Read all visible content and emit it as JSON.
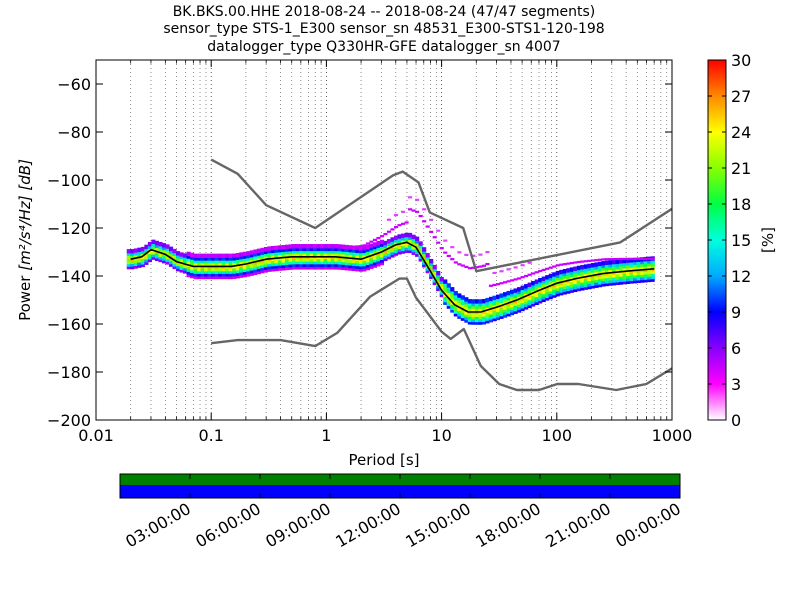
{
  "chart_data": {
    "type": "heatmap",
    "title_lines": [
      "BK.BKS.00.HHE   2018-08-24 -- 2018-08-24  (47/47 segments)",
      "sensor_type STS-1_E300 sensor_sn 48531_E300-STS1-120-198",
      "datalogger_type Q330HR-GFE datalogger_sn 4007"
    ],
    "xlabel": "Period [s]",
    "ylabel_prefix": "Power ",
    "ylabel_units": "[m²/s⁴/Hz] [dB]",
    "xscale": "log",
    "xlim": [
      0.01,
      1000
    ],
    "ylim": [
      -200,
      -50
    ],
    "x_ticks": [
      0.01,
      0.1,
      1,
      10,
      100,
      1000
    ],
    "x_tick_labels": [
      "0.01",
      "0.1",
      "1",
      "10",
      "100",
      "1000"
    ],
    "y_ticks": [
      -60,
      -80,
      -100,
      -120,
      -140,
      -160,
      -180,
      -200
    ],
    "y_tick_labels": [
      "−60",
      "−80",
      "−100",
      "−120",
      "−140",
      "−160",
      "−180",
      "−200"
    ],
    "grid": "vertical dotted",
    "colorbar": {
      "label": "[%]",
      "range": [
        0,
        30
      ],
      "ticks": [
        0,
        3,
        6,
        9,
        12,
        15,
        18,
        21,
        24,
        27,
        30
      ],
      "tick_labels": [
        "0",
        "3",
        "6",
        "9",
        "12",
        "15",
        "18",
        "21",
        "24",
        "27",
        "30"
      ],
      "stops": [
        "#ffffff",
        "#ff00ff",
        "#8800ff",
        "#0000ff",
        "#00aaff",
        "#00ffdd",
        "#00ff44",
        "#88ff00",
        "#ffff00",
        "#ff8800",
        "#ff0000"
      ]
    },
    "noise_model_high": {
      "x": [
        0.1,
        0.17,
        0.3,
        0.8,
        3.8,
        4.6,
        6.3,
        7.9,
        15.4,
        20,
        354.8,
        1000
      ],
      "y": [
        -91.5,
        -97.4,
        -110.5,
        -120,
        -98,
        -96.5,
        -101,
        -113.5,
        -120,
        -138,
        -126,
        -112
      ]
    },
    "noise_model_low": {
      "x": [
        0.1,
        0.17,
        0.4,
        0.8,
        1.24,
        2.4,
        4.3,
        5,
        6,
        10,
        12,
        15.6,
        21.9,
        31.6,
        45,
        70,
        101,
        154,
        328,
        600,
        1000
      ],
      "y": [
        -168,
        -166.7,
        -166.7,
        -169.2,
        -163.7,
        -148.6,
        -141.1,
        -141.1,
        -149,
        -163.2,
        -166.2,
        -162.1,
        -177.5,
        -185,
        -187.5,
        -187.5,
        -185,
        -185,
        -187.5,
        -185,
        -178.5
      ]
    },
    "mode_curve": {
      "x": [
        0.02,
        0.025,
        0.03,
        0.04,
        0.05,
        0.07,
        0.1,
        0.15,
        0.2,
        0.3,
        0.5,
        0.8,
        1.2,
        2,
        3,
        4,
        5,
        6,
        8,
        10,
        13,
        17,
        22,
        30,
        45,
        70,
        100,
        150,
        250,
        400,
        700
      ],
      "y": [
        -133,
        -132,
        -129,
        -131,
        -134,
        -136,
        -136,
        -136,
        -135,
        -133,
        -132,
        -132,
        -132,
        -133,
        -130,
        -127,
        -126,
        -128,
        -138,
        -146,
        -152,
        -155,
        -155,
        -153,
        -150,
        -146,
        -143,
        -141,
        -139,
        -138,
        -137
      ]
    },
    "time_bar": {
      "tick_labels": [
        "03:00:00",
        "06:00:00",
        "09:00:00",
        "12:00:00",
        "15:00:00",
        "18:00:00",
        "21:00:00",
        "00:00:00"
      ],
      "colors": {
        "top": "#008000",
        "bottom": "#0000ff"
      }
    }
  }
}
